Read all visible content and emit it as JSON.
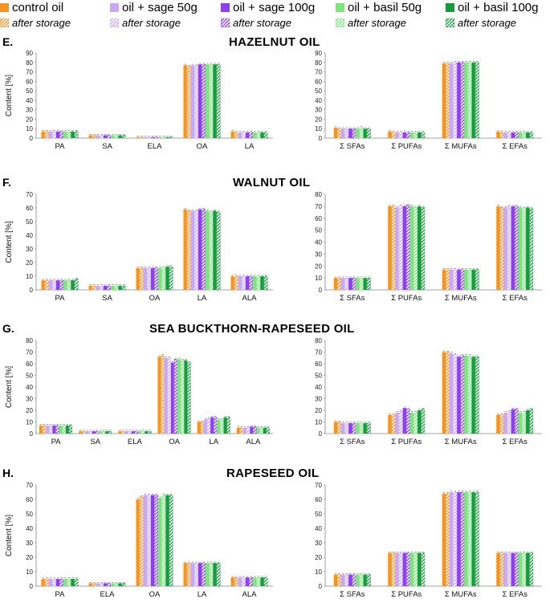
{
  "legend": {
    "items": [
      {
        "label": "control oil",
        "color": "#f7931e"
      },
      {
        "label": "oil + sage 50g",
        "color": "#c9a9f5"
      },
      {
        "label": "oil + sage 100g",
        "color": "#8e3ff0"
      },
      {
        "label": "oil + basil 50g",
        "color": "#7ce67c"
      },
      {
        "label": "oil + basil 100g",
        "color": "#179b3f"
      }
    ],
    "storage_label": "after storage"
  },
  "ylabel": "Content [%]",
  "sections": [
    {
      "id": "E",
      "label": "E.",
      "title": "HAZELNUT OIL"
    },
    {
      "id": "F",
      "label": "F.",
      "title": "WALNUT OIL"
    },
    {
      "id": "G",
      "label": "G.",
      "title": "SEA BUCKTHORN-RAPESEED OIL"
    },
    {
      "id": "H",
      "label": "H.",
      "title": "RAPESEED OIL"
    }
  ],
  "chart_data": [
    {
      "id": "E-left",
      "type": "bar",
      "ylim": [
        0,
        90
      ],
      "yticks": [
        0,
        10,
        20,
        30,
        40,
        50,
        60,
        70,
        80,
        90
      ],
      "categories": [
        "PA",
        "SA",
        "ELA",
        "OA",
        "LA"
      ],
      "values": [
        [
          7,
          7,
          7,
          7,
          7,
          7,
          7,
          7,
          7,
          7
        ],
        [
          3,
          3,
          3,
          3,
          3,
          3,
          3,
          3,
          3,
          3
        ],
        [
          1,
          1,
          1,
          1,
          1,
          1,
          1,
          1,
          1,
          1
        ],
        [
          77,
          76,
          77,
          77,
          78,
          78,
          78,
          78,
          78,
          78
        ],
        [
          7,
          6,
          6,
          6,
          6,
          6,
          6,
          6,
          6,
          6
        ]
      ]
    },
    {
      "id": "E-right",
      "type": "bar",
      "ylim": [
        0,
        90
      ],
      "yticks": [
        0,
        10,
        20,
        30,
        40,
        50,
        60,
        70,
        80,
        90
      ],
      "categories": [
        "Σ SFAs",
        "Σ PUFAs",
        "Σ MUFAs",
        "Σ EFAs"
      ],
      "values": [
        [
          11,
          10,
          10,
          10,
          10,
          10,
          10,
          11,
          10,
          10
        ],
        [
          7,
          6,
          6,
          6,
          6,
          6,
          6,
          6,
          6,
          6
        ],
        [
          79,
          79,
          79,
          80,
          80,
          80,
          80,
          80,
          80,
          80
        ],
        [
          7,
          6,
          6,
          6,
          6,
          6,
          6,
          6,
          6,
          6
        ]
      ]
    },
    {
      "id": "F-left",
      "type": "bar",
      "ylim": [
        0,
        70
      ],
      "yticks": [
        0,
        10,
        20,
        30,
        40,
        50,
        60,
        70
      ],
      "categories": [
        "PA",
        "SA",
        "OA",
        "LA",
        "ALA"
      ],
      "values": [
        [
          7,
          7,
          7,
          7,
          7,
          7,
          7,
          7,
          7,
          8
        ],
        [
          3,
          3,
          3,
          3,
          3,
          3,
          3,
          3,
          3,
          3
        ],
        [
          16,
          16,
          16,
          16,
          16,
          16,
          16,
          16,
          17,
          17
        ],
        [
          59,
          58,
          58,
          58,
          59,
          59,
          58,
          57,
          58,
          57
        ],
        [
          10,
          10,
          10,
          10,
          10,
          10,
          10,
          10,
          10,
          10
        ]
      ]
    },
    {
      "id": "F-right",
      "type": "bar",
      "ylim": [
        0,
        80
      ],
      "yticks": [
        0,
        10,
        20,
        30,
        40,
        50,
        60,
        70,
        80
      ],
      "categories": [
        "Σ SFAs",
        "Σ PUFAs",
        "Σ MUFAs",
        "Σ EFAs"
      ],
      "values": [
        [
          10,
          10,
          10,
          10,
          10,
          10,
          10,
          10,
          10,
          10
        ],
        [
          70,
          70,
          69,
          70,
          70,
          71,
          70,
          69,
          70,
          69
        ],
        [
          17,
          17,
          17,
          17,
          17,
          17,
          17,
          17,
          17,
          17
        ],
        [
          70,
          69,
          69,
          70,
          70,
          70,
          69,
          68,
          69,
          68
        ]
      ]
    },
    {
      "id": "G-left",
      "type": "bar",
      "ylim": [
        0,
        80
      ],
      "yticks": [
        0,
        10,
        20,
        30,
        40,
        50,
        60,
        70,
        80
      ],
      "categories": [
        "PA",
        "SA",
        "ELA",
        "OA",
        "LA",
        "ALA"
      ],
      "values": [
        [
          7,
          7,
          7,
          7,
          7,
          7,
          7,
          7,
          7,
          7
        ],
        [
          2,
          2,
          2,
          2,
          2,
          2,
          2,
          2,
          2,
          2
        ],
        [
          2,
          2,
          2,
          2,
          2,
          2,
          2,
          2,
          2,
          2
        ],
        [
          66,
          67,
          65,
          65,
          61,
          64,
          64,
          63,
          63,
          61
        ],
        [
          10,
          10,
          12,
          13,
          14,
          14,
          12,
          12,
          14,
          14
        ],
        [
          5,
          5,
          5,
          5,
          6,
          6,
          5,
          5,
          5,
          5
        ]
      ]
    },
    {
      "id": "G-right",
      "type": "bar",
      "ylim": [
        0,
        80
      ],
      "yticks": [
        0,
        10,
        20,
        30,
        40,
        50,
        60,
        70,
        80
      ],
      "categories": [
        "Σ SFAs",
        "Σ PUFAs",
        "Σ MUFAs",
        "Σ EFAs"
      ],
      "values": [
        [
          10,
          10,
          9,
          9,
          9,
          9,
          9,
          9,
          9,
          9
        ],
        [
          16,
          16,
          18,
          19,
          22,
          21,
          18,
          18,
          20,
          21
        ],
        [
          70,
          70,
          69,
          68,
          66,
          67,
          67,
          67,
          66,
          66
        ],
        [
          16,
          16,
          18,
          19,
          21,
          21,
          18,
          18,
          20,
          21
        ]
      ]
    },
    {
      "id": "H-left",
      "type": "bar",
      "ylim": [
        0,
        70
      ],
      "yticks": [
        0,
        10,
        20,
        30,
        40,
        50,
        60,
        70
      ],
      "categories": [
        "PA",
        "ELA",
        "OA",
        "LA",
        "ALA"
      ],
      "values": [
        [
          5,
          5,
          5,
          5,
          5,
          5,
          5,
          5,
          5,
          5
        ],
        [
          2,
          2,
          2,
          2,
          2,
          2,
          2,
          2,
          2,
          2
        ],
        [
          60,
          62,
          63,
          63,
          63,
          63,
          61,
          63,
          63,
          63
        ],
        [
          16,
          16,
          16,
          16,
          16,
          16,
          16,
          16,
          16,
          16
        ],
        [
          6,
          6,
          6,
          6,
          6,
          6,
          6,
          6,
          6,
          6
        ]
      ]
    },
    {
      "id": "H-right",
      "type": "bar",
      "ylim": [
        0,
        70
      ],
      "yticks": [
        0,
        10,
        20,
        30,
        40,
        50,
        60,
        70
      ],
      "categories": [
        "Σ SFAs",
        "Σ PUFAs",
        "Σ MUFAs",
        "Σ EFAs"
      ],
      "values": [
        [
          8,
          8,
          8,
          8,
          8,
          8,
          8,
          8,
          8,
          8
        ],
        [
          23,
          23,
          23,
          23,
          23,
          23,
          23,
          23,
          23,
          23
        ],
        [
          64,
          64,
          65,
          65,
          65,
          65,
          65,
          65,
          65,
          65
        ],
        [
          23,
          23,
          23,
          23,
          23,
          23,
          23,
          23,
          23,
          23
        ]
      ]
    }
  ]
}
